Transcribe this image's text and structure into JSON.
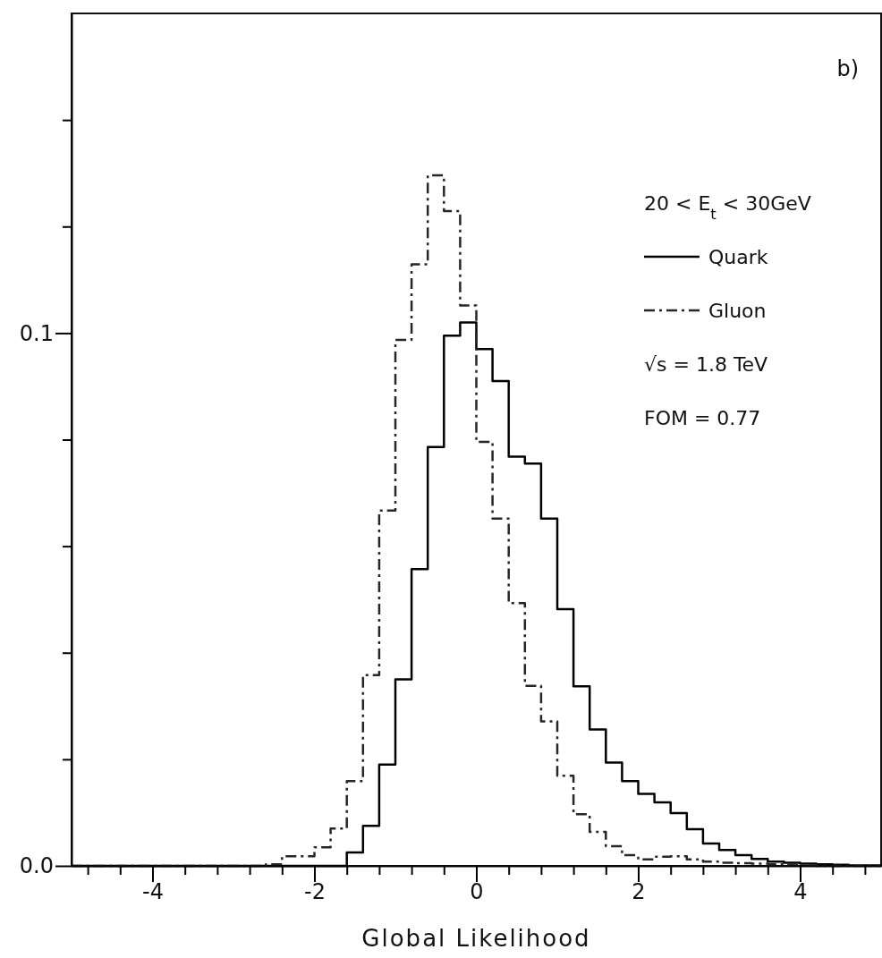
{
  "chart_data": {
    "type": "histogram",
    "xlabel": "Global Likelihood",
    "bins": [
      -5,
      -4.8,
      -4.6,
      -4.4,
      -4.2,
      -4,
      -3.8,
      -3.6,
      -3.4,
      -3.2,
      -3,
      -2.8,
      -2.6,
      -2.4,
      -2.2,
      -2,
      -1.8,
      -1.6,
      -1.4,
      -1.2,
      -1,
      -0.8,
      -0.6,
      -0.4,
      -0.2,
      0,
      0.2,
      0.4,
      0.6,
      0.8,
      1,
      1.2,
      1.4,
      1.6,
      1.8,
      2,
      2.2,
      2.4,
      2.6,
      2.8,
      3,
      3.2,
      3.4,
      3.6,
      3.8,
      4,
      4.2,
      4.4,
      4.6,
      4.8,
      5
    ],
    "series": [
      {
        "name": "Quark",
        "color": "#000000",
        "line_style": "solid",
        "values": [
          0,
          0,
          0,
          0,
          0,
          0,
          0,
          0,
          0,
          0,
          0,
          0,
          0,
          0,
          0,
          0,
          0,
          0.0025,
          0.0075,
          0.019,
          0.035,
          0.0557,
          0.0786,
          0.0995,
          0.102,
          0.097,
          0.091,
          0.0768,
          0.0755,
          0.0652,
          0.0482,
          0.0337,
          0.0256,
          0.0194,
          0.0159,
          0.0135,
          0.0119,
          0.0099,
          0.0069,
          0.0042,
          0.003,
          0.002,
          0.0013,
          0.0008,
          0.0006,
          0.0004,
          0.0003,
          0.0002,
          0.0001,
          0.0001
        ]
      },
      {
        "name": "Gluon",
        "color": "#262626",
        "line_style": "dashed",
        "values": [
          0,
          0,
          0,
          0,
          0,
          0,
          0,
          0,
          0,
          0,
          0,
          0,
          0.0003,
          0.0018,
          0.0018,
          0.0035,
          0.007,
          0.0159,
          0.0358,
          0.0667,
          0.0987,
          0.1129,
          0.1296,
          0.1229,
          0.1052,
          0.0796,
          0.0652,
          0.0493,
          0.0338,
          0.0271,
          0.0169,
          0.0097,
          0.0064,
          0.0037,
          0.002,
          0.0012,
          0.0017,
          0.0018,
          0.0012,
          0.0008,
          0.0006,
          0.0005,
          0.0004,
          0.0003,
          0.0002,
          0.0001,
          0,
          0,
          0,
          0
        ]
      }
    ],
    "xlim": [
      -5,
      5
    ],
    "ylim": [
      0,
      0.16
    ],
    "xticks": [
      {
        "value": -4.8,
        "label": null
      },
      {
        "value": -4.4,
        "label": null
      },
      {
        "value": -4,
        "label": "-4"
      },
      {
        "value": -3.6,
        "label": null
      },
      {
        "value": -3.2,
        "label": null
      },
      {
        "value": -2.8,
        "label": null
      },
      {
        "value": -2.4,
        "label": null
      },
      {
        "value": -2,
        "label": "-2"
      },
      {
        "value": -1.6,
        "label": null
      },
      {
        "value": -1.2,
        "label": null
      },
      {
        "value": -0.8,
        "label": null
      },
      {
        "value": -0.4,
        "label": null
      },
      {
        "value": 0,
        "label": "0"
      },
      {
        "value": 0.4,
        "label": null
      },
      {
        "value": 0.8,
        "label": null
      },
      {
        "value": 1.2,
        "label": null
      },
      {
        "value": 1.6,
        "label": null
      },
      {
        "value": 2,
        "label": "2"
      },
      {
        "value": 2.4,
        "label": null
      },
      {
        "value": 2.8,
        "label": null
      },
      {
        "value": 3.2,
        "label": null
      },
      {
        "value": 3.6,
        "label": null
      },
      {
        "value": 4,
        "label": "4"
      },
      {
        "value": 4.4,
        "label": null
      },
      {
        "value": 4.8,
        "label": null
      }
    ],
    "yticks": [
      {
        "value": 0,
        "label": "0.0"
      },
      {
        "value": 0.02,
        "label": null
      },
      {
        "value": 0.04,
        "label": null
      },
      {
        "value": 0.06,
        "label": null
      },
      {
        "value": 0.08,
        "label": null
      },
      {
        "value": 0.1,
        "label": "0.1"
      },
      {
        "value": 0.12,
        "label": null
      },
      {
        "value": 0.14,
        "label": null
      }
    ],
    "legend": "top right",
    "annotations": [
      "b)",
      "20 < E$_{t}$ < 30GeV",
      "√s = 1.8 TeV",
      "FOM = 0.77"
    ]
  }
}
